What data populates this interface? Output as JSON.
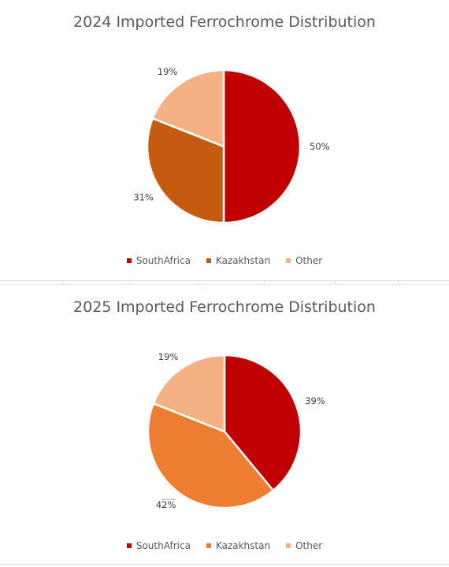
{
  "chart_data": [
    {
      "type": "pie",
      "title": "2024 Imported Ferrochrome Distribution",
      "categories": [
        "SouthAfrica",
        "Kazakhstan",
        "Other"
      ],
      "values": [
        50,
        31,
        19
      ],
      "labels": [
        "50%",
        "31%",
        "19%"
      ],
      "colors": [
        "#C00000",
        "#C55A11",
        "#F4B183"
      ],
      "legend_position": "bottom"
    },
    {
      "type": "pie",
      "title": "2025 Imported Ferrochrome Distribution",
      "categories": [
        "SouthAfrica",
        "Kazakhstan",
        "Other"
      ],
      "values": [
        39,
        42,
        19
      ],
      "labels": [
        "39%",
        "42%",
        "19%"
      ],
      "colors": [
        "#C00000",
        "#ED7D31",
        "#F4B183"
      ],
      "legend_position": "bottom"
    }
  ]
}
